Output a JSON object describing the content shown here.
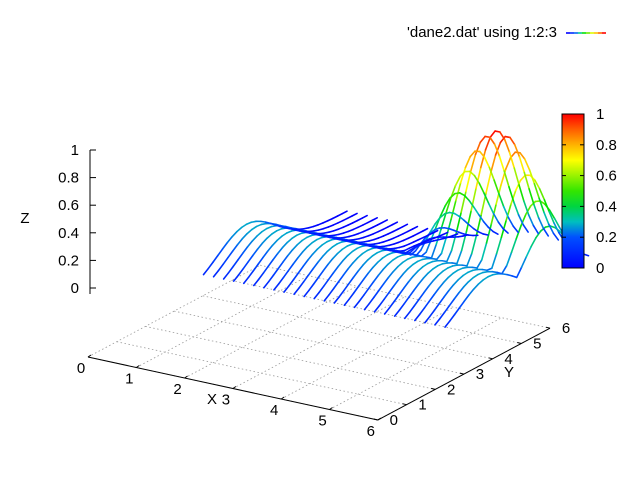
{
  "chart_data": {
    "type": "surface",
    "title": "",
    "legend": {
      "label": "'dane2.dat' using 1:2:3",
      "placement": "top-right"
    },
    "xlabel": "X",
    "ylabel": "Y",
    "zlabel": "Z",
    "xlim": [
      0,
      6
    ],
    "ylim": [
      0,
      6
    ],
    "zlim": [
      0,
      1
    ],
    "xticks": [
      "0",
      "1",
      "2",
      "3",
      "4",
      "5",
      "6"
    ],
    "yticks": [
      "0",
      "1",
      "2",
      "3",
      "4",
      "5",
      "6"
    ],
    "zticks": [
      "0",
      "0.2",
      "0.4",
      "0.6",
      "0.8",
      "1"
    ],
    "colorbar": {
      "ticks": [
        "0",
        "0.2",
        "0.4",
        "0.6",
        "0.8",
        "1"
      ],
      "palette": [
        "#0000ff",
        "#00bfbf",
        "#00e000",
        "#ffff00",
        "#ff0000"
      ]
    },
    "grid": true,
    "surface": {
      "x_range": [
        1.5,
        6.5
      ],
      "y_range": [
        1.5,
        6.5
      ],
      "x_lines": 25,
      "samples": 30,
      "peak": {
        "x": 5.5,
        "y": 5.0,
        "z": 1.0,
        "sigma": 0.75
      },
      "ridge": {
        "along": "x",
        "y": 3.0,
        "z": 0.28,
        "sigma": 1.0,
        "x_from": 1.5,
        "x_to": 6.5
      }
    }
  }
}
